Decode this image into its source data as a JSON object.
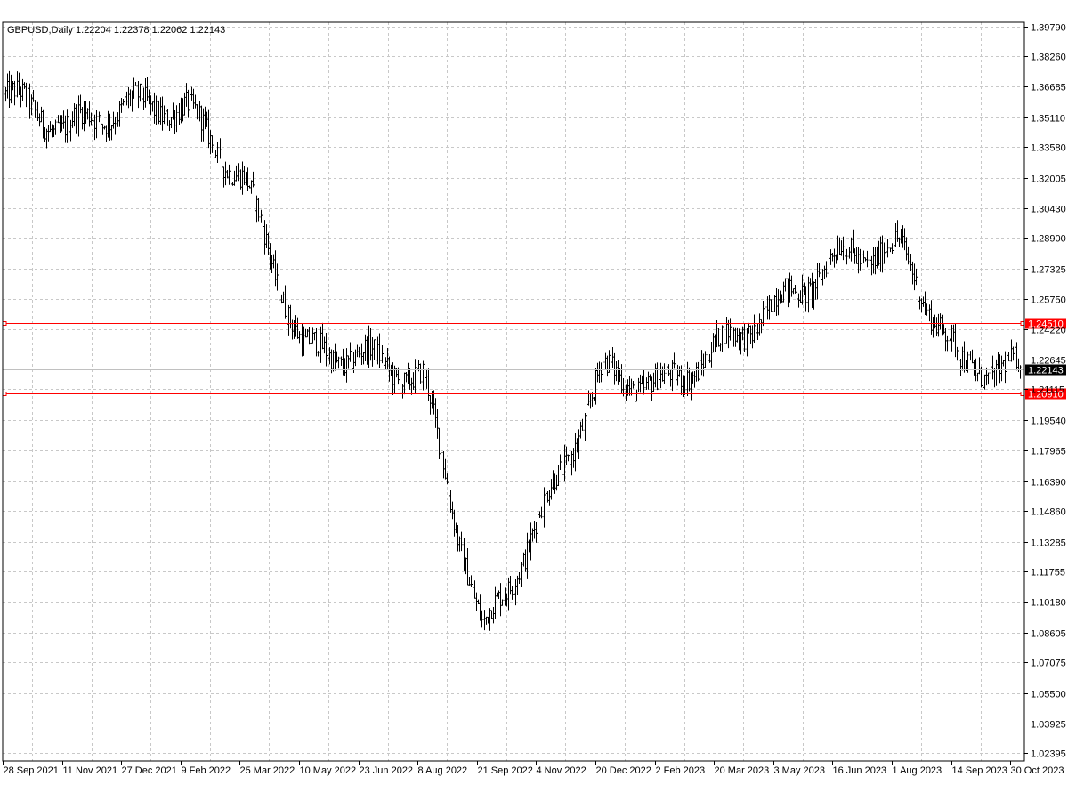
{
  "chart_data": {
    "type": "line",
    "title": "GBPUSD,Daily  1.22204 1.22378 1.22062 1.22143",
    "symbol": "GBPUSD",
    "timeframe": "Daily",
    "last_bar": {
      "open": 1.22204,
      "high": 1.22378,
      "low": 1.22062,
      "close": 1.22143
    },
    "current_price_label": "1.22143",
    "bar_style": "OHLC bars",
    "grid": true,
    "ylim": [
      1.02,
      1.4
    ],
    "y_ticks": [
      "1.39790",
      "1.38260",
      "1.36685",
      "1.35110",
      "1.33580",
      "1.32005",
      "1.30430",
      "1.28900",
      "1.27325",
      "1.25750",
      "1.24220",
      "1.22645",
      "1.21115",
      "1.19540",
      "1.17965",
      "1.16390",
      "1.14860",
      "1.13285",
      "1.11755",
      "1.10180",
      "1.08605",
      "1.07075",
      "1.05500",
      "1.03925",
      "1.02395"
    ],
    "x_ticks": [
      "28 Sep 2021",
      "11 Nov 2021",
      "27 Dec 2021",
      "9 Feb 2022",
      "25 Mar 2022",
      "10 May 2022",
      "23 Jun 2022",
      "8 Aug 2022",
      "21 Sep 2022",
      "4 Nov 2022",
      "20 Dec 2022",
      "2 Feb 2023",
      "20 Mar 2023",
      "3 May 2023",
      "16 Jun 2023",
      "1 Aug 2023",
      "14 Sep 2023",
      "30 Oct 2023"
    ],
    "horizontal_lines": [
      {
        "label": "1.24510",
        "value": 1.2451
      },
      {
        "label": "1.20910",
        "value": 1.2091
      }
    ],
    "series": [
      {
        "x": [
          "28 Sep 2021",
          "11 Nov 2021",
          "27 Dec 2021",
          "9 Feb 2022",
          "25 Mar 2022",
          "10 May 2022",
          "23 Jun 2022",
          "8 Aug 2022",
          "21 Sep 2022",
          "4 Nov 2022",
          "20 Dec 2022",
          "2 Feb 2023",
          "20 Mar 2023",
          "3 May 2023",
          "16 Jun 2023",
          "1 Aug 2023",
          "14 Sep 2023",
          "30 Oct 2023"
        ],
        "values": [
          1.363,
          1.345,
          1.357,
          1.356,
          1.318,
          1.231,
          1.228,
          1.216,
          1.085,
          1.147,
          1.22,
          1.212,
          1.234,
          1.256,
          1.28,
          1.283,
          1.223,
          1.221
        ]
      }
    ]
  },
  "colors": {
    "background": "#ffffff",
    "grid": "#c8c8c8",
    "bars": "#000000",
    "levels": "#ff0000",
    "price_line": "#c0c0c0",
    "price_label_bg": "#000000",
    "price_label_text": "#ffffff",
    "level_label_text": "#ffffff"
  }
}
